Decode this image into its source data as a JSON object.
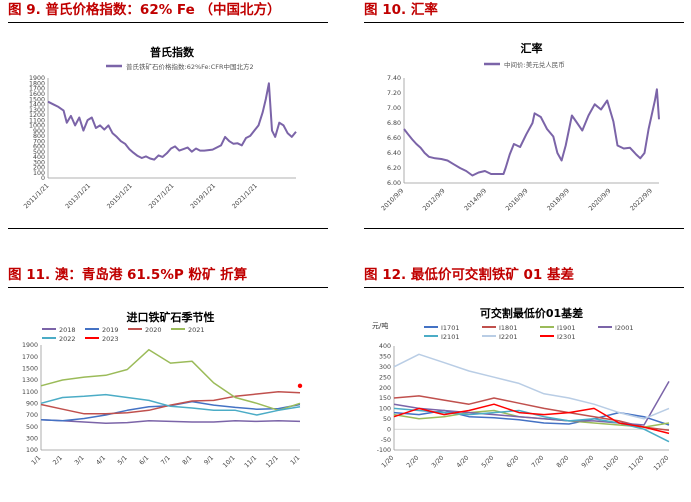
{
  "figures": [
    {
      "title": "图 9. 普氏价格指数：62% Fe （中国北方）"
    },
    {
      "title": "图 10.  汇率"
    },
    {
      "title": "图 11.  澳：青岛港  61.5%P 粉矿  折算"
    },
    {
      "title": "图 12. 最低价可交割铁矿 01 基差"
    }
  ],
  "colors": {
    "title_red": "#c00000",
    "purple": "#7b64a8"
  },
  "chart_data": [
    {
      "type": "line",
      "title": "普氏指数",
      "xlabel": "",
      "ylabel": "",
      "x_tick_labels": [
        "2011/1/21",
        "2013/1/21",
        "2015/1/21",
        "2017/1/21",
        "2019/1/21",
        "2021/1/21"
      ],
      "y_tick_labels": [
        "0",
        "100",
        "200",
        "300",
        "400",
        "500",
        "600",
        "700",
        "800",
        "900",
        "1000",
        "1100",
        "1200",
        "1300",
        "1400",
        "1500",
        "1600",
        "1700",
        "1800",
        "1900"
      ],
      "ylim": [
        0,
        1900
      ],
      "xlim": [
        2011.0,
        2022.9
      ],
      "grid": false,
      "legend": "top",
      "series": [
        {
          "name": "普氏铁矿石价格指数:62%Fe:CFR中国北方2",
          "color": "#7b64a8",
          "x": [
            2011.0,
            2011.25,
            2011.5,
            2011.75,
            2011.9,
            2012.1,
            2012.3,
            2012.5,
            2012.7,
            2012.9,
            2013.1,
            2013.3,
            2013.5,
            2013.7,
            2013.9,
            2014.1,
            2014.3,
            2014.5,
            2014.7,
            2014.9,
            2015.1,
            2015.3,
            2015.5,
            2015.7,
            2015.9,
            2016.1,
            2016.3,
            2016.5,
            2016.7,
            2016.9,
            2017.1,
            2017.3,
            2017.5,
            2017.7,
            2017.9,
            2018.1,
            2018.3,
            2018.5,
            2018.7,
            2018.9,
            2019.1,
            2019.3,
            2019.5,
            2019.7,
            2019.9,
            2020.1,
            2020.3,
            2020.5,
            2020.7,
            2020.9,
            2021.1,
            2021.3,
            2021.45,
            2021.6,
            2021.75,
            2021.9,
            2022.1,
            2022.3,
            2022.5,
            2022.7,
            2022.9
          ],
          "y": [
            1450,
            1400,
            1350,
            1280,
            1050,
            1180,
            1000,
            1150,
            900,
            1100,
            1150,
            950,
            1000,
            920,
            1000,
            850,
            780,
            700,
            650,
            550,
            480,
            420,
            380,
            410,
            370,
            350,
            430,
            400,
            470,
            560,
            600,
            520,
            550,
            580,
            500,
            560,
            520,
            520,
            530,
            540,
            580,
            620,
            780,
            700,
            650,
            660,
            620,
            760,
            800,
            900,
            1000,
            1250,
            1500,
            1800,
            900,
            780,
            1050,
            1000,
            850,
            780,
            880
          ]
        }
      ]
    },
    {
      "type": "line",
      "title": "汇率",
      "xlabel": "",
      "ylabel": "",
      "x_tick_labels": [
        "2010/9/9",
        "2012/9/9",
        "2014/9/9",
        "2016/9/9",
        "2018/9/9",
        "2020/9/9",
        "2022/9/9"
      ],
      "y_tick_labels": [
        "6.00",
        "6.20",
        "6.40",
        "6.60",
        "6.80",
        "7.00",
        "7.20",
        "7.40"
      ],
      "ylim": [
        6.0,
        7.4
      ],
      "xlim": [
        2010.7,
        2023.0
      ],
      "grid": false,
      "legend": "top",
      "series": [
        {
          "name": "中间价:美元兑人民币",
          "color": "#7b64a8",
          "x": [
            2010.7,
            2010.9,
            2011.1,
            2011.3,
            2011.5,
            2011.7,
            2011.9,
            2012.2,
            2012.5,
            2012.8,
            2013.1,
            2013.4,
            2013.7,
            2014.0,
            2014.3,
            2014.6,
            2014.9,
            2015.2,
            2015.5,
            2015.6,
            2015.8,
            2016.0,
            2016.3,
            2016.6,
            2016.9,
            2017.0,
            2017.3,
            2017.6,
            2017.9,
            2018.1,
            2018.3,
            2018.5,
            2018.8,
            2019.0,
            2019.3,
            2019.6,
            2019.9,
            2020.2,
            2020.5,
            2020.8,
            2021.0,
            2021.3,
            2021.6,
            2021.9,
            2022.1,
            2022.3,
            2022.5,
            2022.8,
            2022.9,
            2023.0
          ],
          "y": [
            6.72,
            6.65,
            6.58,
            6.52,
            6.47,
            6.4,
            6.35,
            6.33,
            6.32,
            6.3,
            6.25,
            6.2,
            6.16,
            6.1,
            6.14,
            6.16,
            6.12,
            6.12,
            6.12,
            6.2,
            6.38,
            6.52,
            6.48,
            6.65,
            6.8,
            6.93,
            6.88,
            6.72,
            6.62,
            6.4,
            6.3,
            6.5,
            6.9,
            6.82,
            6.7,
            6.9,
            7.05,
            6.98,
            7.1,
            6.82,
            6.5,
            6.46,
            6.47,
            6.38,
            6.33,
            6.4,
            6.72,
            7.1,
            7.25,
            6.85
          ]
        }
      ]
    },
    {
      "type": "line",
      "title": "进口铁矿石季节性",
      "xlabel": "",
      "ylabel": "",
      "categories": [
        "1/1",
        "2/1",
        "3/1",
        "4/1",
        "5/1",
        "6/1",
        "7/1",
        "8/1",
        "9/1",
        "10/1",
        "11/1",
        "12/1",
        "1/1"
      ],
      "y_tick_labels": [
        "100",
        "300",
        "500",
        "700",
        "900",
        "1100",
        "1300",
        "1500",
        "1700",
        "1900"
      ],
      "ylim": [
        100,
        1900
      ],
      "grid": false,
      "legend": "top",
      "series": [
        {
          "name": "2018",
          "color": "#7b64a8",
          "values": [
            620,
            600,
            580,
            560,
            570,
            600,
            590,
            580,
            580,
            600,
            590,
            600,
            590
          ]
        },
        {
          "name": "2019",
          "color": "#4472c4",
          "values": [
            620,
            600,
            640,
            700,
            780,
            840,
            860,
            930,
            870,
            830,
            800,
            810,
            880
          ]
        },
        {
          "name": "2020",
          "color": "#c0504d",
          "values": [
            880,
            800,
            720,
            720,
            740,
            780,
            870,
            940,
            950,
            1020,
            1060,
            1100,
            1080
          ]
        },
        {
          "name": "2021",
          "color": "#9bbb59",
          "values": [
            1200,
            1300,
            1350,
            1380,
            1480,
            1820,
            1590,
            1620,
            1250,
            1000,
            900,
            780,
            900
          ]
        },
        {
          "name": "2022",
          "color": "#4bacc6",
          "values": [
            900,
            1000,
            1020,
            1050,
            1000,
            950,
            850,
            820,
            780,
            780,
            700,
            780,
            840
          ]
        },
        {
          "name": "2023",
          "color": "#ff0000",
          "values": [
            null,
            null,
            null,
            null,
            null,
            null,
            null,
            null,
            null,
            null,
            null,
            null,
            1200
          ]
        }
      ]
    },
    {
      "type": "line",
      "title": "可交割最低价01基差",
      "xlabel": "",
      "ylabel": "元/吨",
      "categories": [
        "1/20",
        "2/20",
        "3/20",
        "4/20",
        "5/20",
        "6/20",
        "7/20",
        "8/20",
        "9/20",
        "10/20",
        "11/20",
        "12/20"
      ],
      "y_tick_labels": [
        "-100",
        "-50",
        "0",
        "50",
        "100",
        "150",
        "200",
        "250",
        "300",
        "350",
        "400"
      ],
      "ylim": [
        -100,
        400
      ],
      "grid": false,
      "legend": "top",
      "series": [
        {
          "name": "I1701",
          "color": "#4472c4",
          "values": [
            80,
            70,
            90,
            60,
            55,
            45,
            30,
            25,
            50,
            80,
            60,
            20
          ]
        },
        {
          "name": "I1801",
          "color": "#c0504d",
          "values": [
            150,
            160,
            140,
            120,
            150,
            125,
            100,
            80,
            60,
            40,
            10,
            -5
          ]
        },
        {
          "name": "I1901",
          "color": "#9bbb59",
          "values": [
            70,
            50,
            60,
            80,
            90,
            60,
            50,
            40,
            30,
            20,
            10,
            30
          ]
        },
        {
          "name": "I2001",
          "color": "#7b64a8",
          "values": [
            120,
            100,
            90,
            80,
            70,
            60,
            50,
            40,
            40,
            30,
            20,
            230
          ]
        },
        {
          "name": "I2101",
          "color": "#4bacc6",
          "values": [
            100,
            90,
            80,
            70,
            80,
            90,
            60,
            40,
            50,
            30,
            0,
            -60
          ]
        },
        {
          "name": "I2201",
          "color": "#b9cde5",
          "values": [
            300,
            360,
            320,
            280,
            250,
            220,
            170,
            150,
            120,
            80,
            50,
            100
          ]
        },
        {
          "name": "I2301",
          "color": "#ff0000",
          "values": [
            60,
            100,
            70,
            90,
            120,
            80,
            70,
            80,
            100,
            30,
            10,
            -20
          ]
        }
      ]
    }
  ]
}
